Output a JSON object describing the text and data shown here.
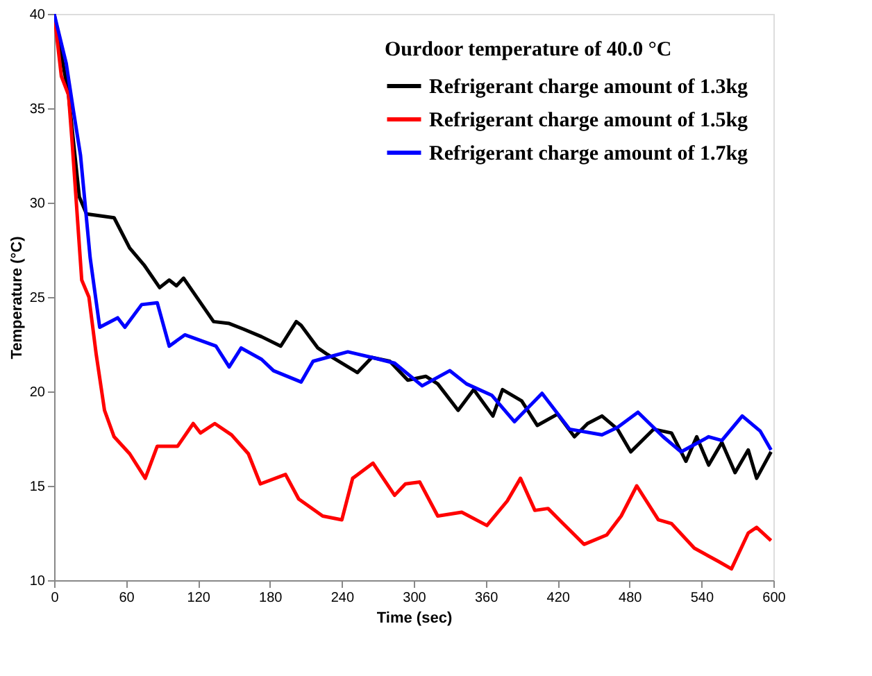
{
  "chart_data": {
    "type": "line",
    "xlabel": "Time (sec)",
    "ylabel": "Temperature (°C)",
    "legend_title": "Ourdoor temperature of 40.0 °C",
    "legend": "top right",
    "grid": false,
    "line_style": "solid",
    "marker": "none",
    "xlim": [
      0,
      600
    ],
    "xticks": [
      0,
      60,
      120,
      180,
      240,
      300,
      360,
      420,
      480,
      540,
      600
    ],
    "ylim": [
      10,
      40
    ],
    "yticks": [
      10,
      15,
      20,
      25,
      30,
      35,
      40
    ],
    "series": [
      {
        "name": "Refrigerant charge amount of 1.3kg",
        "color": "#000000",
        "x": [
          0,
          12,
          21,
          27,
          50,
          63,
          75,
          88,
          96,
          102,
          108,
          133,
          146,
          158,
          173,
          189,
          202,
          206,
          220,
          227,
          253,
          265,
          280,
          295,
          310,
          320,
          337,
          350,
          366,
          374,
          390,
          403,
          420,
          434,
          445,
          457,
          470,
          481,
          500,
          515,
          527,
          536,
          546,
          557,
          568,
          579,
          586,
          598
        ],
        "values": [
          40,
          35.7,
          30.3,
          29.4,
          29.2,
          27.6,
          26.7,
          25.5,
          25.9,
          25.6,
          26,
          23.7,
          23.6,
          23.3,
          22.9,
          22.4,
          23.7,
          23.5,
          22.3,
          22,
          21,
          21.8,
          21.6,
          20.6,
          20.8,
          20.4,
          19,
          20.1,
          18.7,
          20.1,
          19.5,
          18.2,
          18.8,
          17.6,
          18.3,
          18.7,
          18,
          16.8,
          18,
          17.8,
          16.3,
          17.6,
          16.1,
          17.3,
          15.7,
          16.9,
          15.4,
          16.8
        ]
      },
      {
        "name": "Refrigerant charge amount of 1.5kg",
        "color": "#ff0000",
        "x": [
          0,
          6,
          12,
          15,
          23,
          29,
          35,
          42,
          50,
          63,
          76,
          86,
          103,
          116,
          122,
          134,
          148,
          162,
          172,
          193,
          204,
          224,
          240,
          249,
          266,
          284,
          293,
          305,
          320,
          340,
          361,
          378,
          389,
          401,
          412,
          423,
          442,
          461,
          473,
          486,
          504,
          515,
          534,
          554,
          565,
          579,
          586,
          598
        ],
        "values": [
          40,
          36.7,
          35.7,
          33.2,
          25.9,
          25,
          22,
          19,
          17.6,
          16.7,
          15.4,
          17.1,
          17.1,
          18.3,
          17.8,
          18.3,
          17.7,
          16.7,
          15.1,
          15.6,
          14.3,
          13.4,
          13.2,
          15.4,
          16.2,
          14.5,
          15.1,
          15.2,
          13.4,
          13.6,
          12.9,
          14.2,
          15.4,
          13.7,
          13.8,
          13.1,
          11.9,
          12.4,
          13.4,
          15,
          13.2,
          13,
          11.7,
          11,
          10.6,
          12.5,
          12.8,
          12.1
        ]
      },
      {
        "name": "Refrigerant charge amount of 1.7kg",
        "color": "#0000ff",
        "x": [
          0,
          10,
          16,
          22,
          30,
          38,
          53,
          59,
          73,
          86,
          96,
          109,
          135,
          146,
          156,
          173,
          183,
          206,
          216,
          245,
          265,
          284,
          307,
          330,
          344,
          365,
          384,
          407,
          430,
          457,
          470,
          487,
          508,
          523,
          546,
          557,
          574,
          589,
          598
        ],
        "values": [
          40,
          37.4,
          34.9,
          32.5,
          27.1,
          23.4,
          23.9,
          23.4,
          24.6,
          24.7,
          22.4,
          23,
          22.4,
          21.3,
          22.3,
          21.7,
          21.1,
          20.5,
          21.6,
          22.1,
          21.8,
          21.5,
          20.3,
          21.1,
          20.4,
          19.8,
          18.4,
          19.9,
          18,
          17.7,
          18.1,
          18.9,
          17.6,
          16.8,
          17.6,
          17.4,
          18.7,
          17.9,
          16.9
        ]
      }
    ]
  }
}
